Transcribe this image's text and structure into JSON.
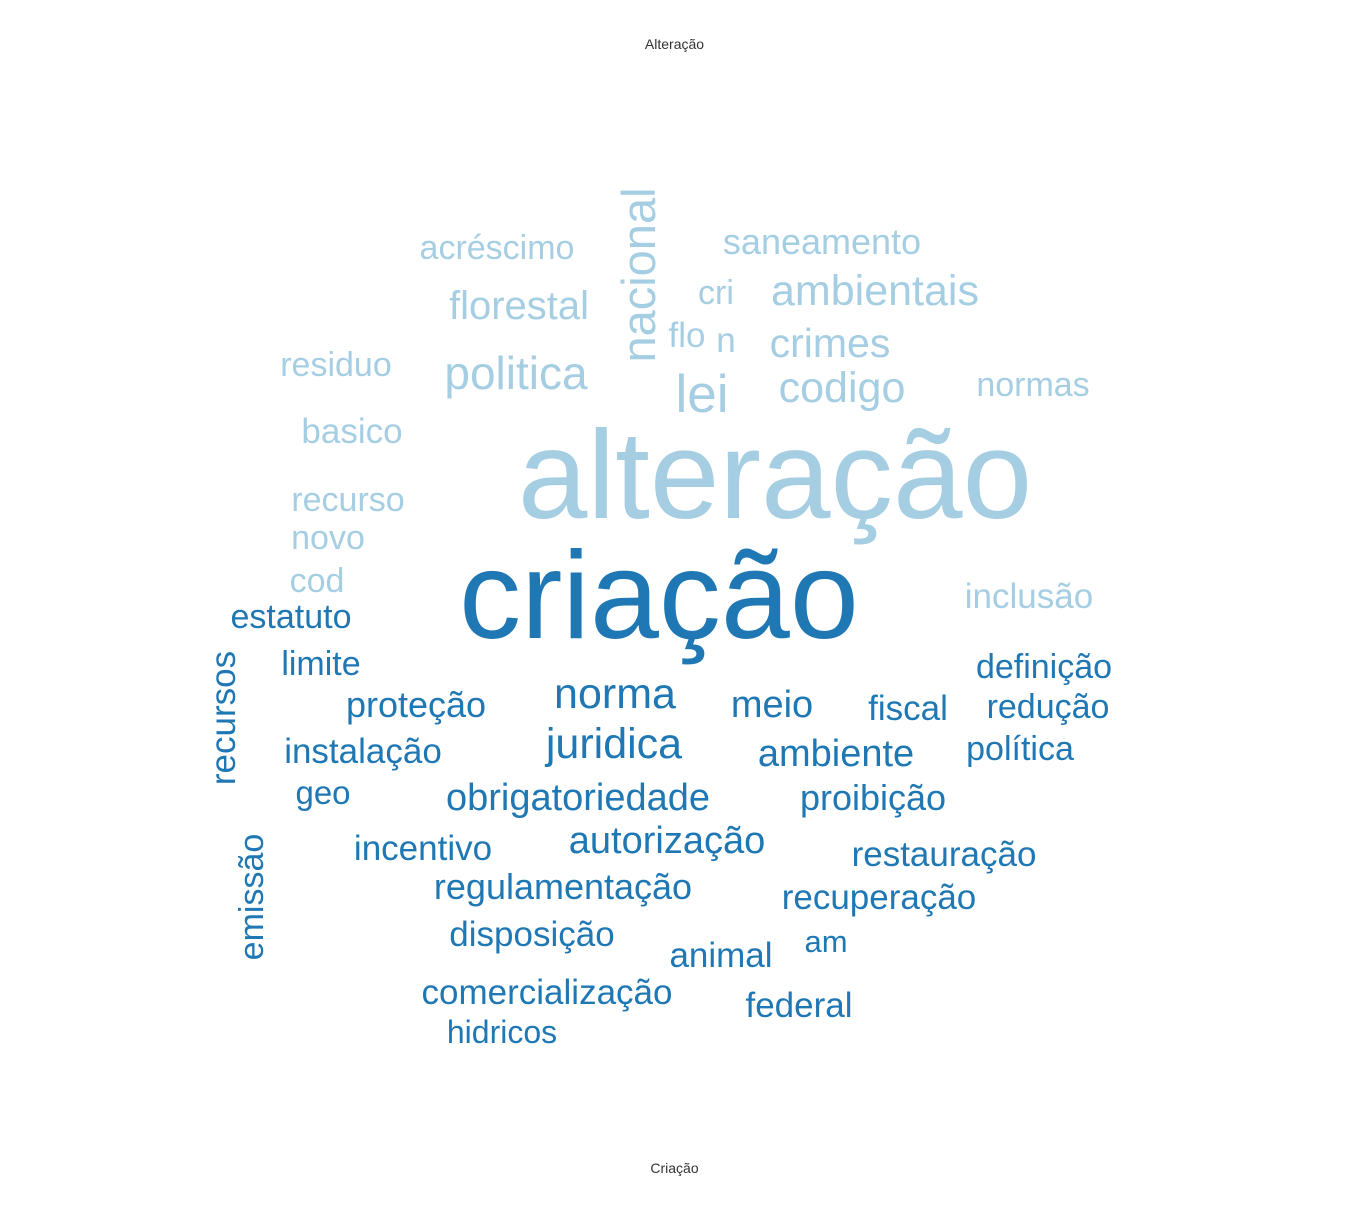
{
  "labels": {
    "top": "Alteração",
    "bottom": "Criação"
  },
  "colors": {
    "alteracao": "#a6cee3",
    "criacao": "#1f78b4"
  },
  "groups": [
    {
      "name": "Alteração",
      "words": [
        "alteração",
        "nacional",
        "lei",
        "politica",
        "codigo",
        "ambientais",
        "crimes",
        "florestal",
        "saneamento",
        "acréscimo",
        "normas",
        "basico",
        "residuo",
        "recurso",
        "novo",
        "cod",
        "cri",
        "flo",
        "n",
        "inclusão"
      ]
    },
    {
      "name": "Criação",
      "words": [
        "criação",
        "norma",
        "juridica",
        "obrigatoriedade",
        "autorização",
        "meio",
        "ambiente",
        "regulamentação",
        "definição",
        "proteção",
        "instalação",
        "recursos",
        "estatuto",
        "limite",
        "fiscal",
        "redução",
        "política",
        "proibição",
        "restauração",
        "recuperação",
        "incentivo",
        "disposição",
        "animal",
        "comercialização",
        "federal",
        "hidricos",
        "emissão",
        "geo",
        "am"
      ]
    }
  ]
}
